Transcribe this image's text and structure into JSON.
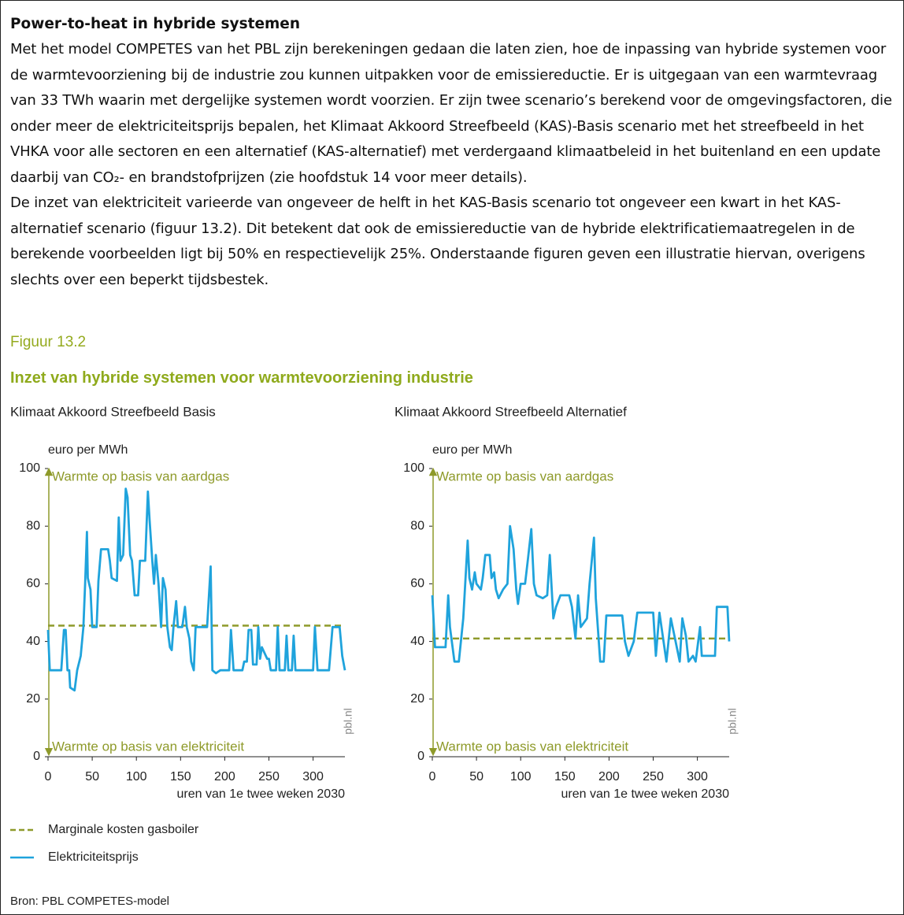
{
  "document": {
    "title": "Power-to-heat in hybride systemen",
    "paragraphs": [
      "Met het model COMPETES van het PBL zijn berekeningen gedaan die laten zien, hoe de inpassing van hybride systemen voor de warmtevoorziening bij de industrie zou kunnen uitpakken voor de emissiereductie. Er is uitgegaan van een warmtevraag van 33 TWh waarin met dergelijke systemen wordt voorzien. Er zijn twee scenario’s berekend voor de omgevingsfactoren, die onder meer de elektriciteitsprijs bepalen, het Klimaat Akkoord Streefbeeld (KAS)-Basis scenario met het streefbeeld in het VHKA voor alle sectoren en een alternatief (KAS-alternatief) met verdergaand klimaatbeleid in het buitenland en een update daarbij van CO₂- en brandstofprijzen (zie hoofdstuk 14 voor meer details).",
      "De inzet van elektriciteit varieerde van ongeveer de helft in het KAS-Basis scenario tot ongeveer een kwart in het KAS-alternatief scenario (figuur 13.2). Dit betekent dat ook de emissiereductie van de hybride elektrificatiemaatregelen in de berekende voorbeelden ligt bij 50% en respectievelijk 25%. Onderstaande figuren geven een illustratie hiervan, overigens slechts over een beperkt tijdsbestek."
    ],
    "figure_label": "Figuur 13.2",
    "figure_title": "Inzet van hybride systemen voor warmtevoorziening industrie",
    "source": "Bron: PBL COMPETES-model"
  },
  "chart_data": [
    {
      "type": "line",
      "subtitle": "Klimaat Akkoord Streefbeeld Basis",
      "ylabel": "euro per MWh",
      "xlabel": "uren van 1e twee weken 2030",
      "annotations": [
        "Warmte op basis van aardgas",
        "Warmte op basis van elektriciteit"
      ],
      "credit": "pbl.nl",
      "xlim": [
        0,
        336
      ],
      "ylim": [
        0,
        100
      ],
      "xticks": [
        0,
        50,
        100,
        150,
        200,
        250,
        300
      ],
      "yticks": [
        0,
        20,
        40,
        60,
        80,
        100
      ],
      "series": [
        {
          "name": "Marginale kosten gasboiler",
          "color": "#8e9a2a",
          "dash": true,
          "x": [
            0,
            336
          ],
          "values": [
            45.5,
            45.5
          ]
        },
        {
          "name": "Elektriciteitsprijs",
          "color": "#1fa3dc",
          "dash": false,
          "x": [
            0,
            2,
            15,
            18,
            20,
            22,
            24,
            25,
            30,
            33,
            37,
            40,
            42,
            44,
            45,
            48,
            50,
            55,
            57,
            60,
            68,
            70,
            72,
            78,
            80,
            82,
            85,
            88,
            90,
            93,
            95,
            98,
            102,
            104,
            110,
            113,
            115,
            118,
            120,
            122,
            125,
            128,
            130,
            133,
            135,
            138,
            140,
            142,
            145,
            147,
            152,
            155,
            157,
            160,
            162,
            165,
            167,
            180,
            184,
            186,
            190,
            195,
            205,
            207,
            210,
            220,
            222,
            225,
            227,
            230,
            232,
            236,
            238,
            240,
            242,
            248,
            250,
            252,
            258,
            260,
            262,
            268,
            270,
            272,
            276,
            278,
            280,
            300,
            302,
            305,
            318,
            322,
            330,
            333,
            336
          ],
          "values": [
            44,
            30,
            30,
            44,
            44,
            30,
            30,
            24,
            23,
            30,
            35,
            45,
            60,
            78,
            62,
            58,
            45,
            45,
            61,
            72,
            72,
            68,
            62,
            61,
            83,
            68,
            70,
            93,
            90,
            70,
            68,
            56,
            56,
            68,
            68,
            92,
            82,
            68,
            60,
            70,
            60,
            45,
            62,
            58,
            45,
            38,
            37,
            45,
            54,
            45,
            45,
            52,
            45,
            41,
            33,
            30,
            45,
            45,
            66,
            30,
            29,
            30,
            30,
            44,
            30,
            30,
            33,
            33,
            44,
            44,
            32,
            32,
            45,
            34,
            38,
            34,
            34,
            30,
            30,
            45,
            30,
            30,
            42,
            30,
            30,
            42,
            30,
            30,
            45,
            30,
            30,
            45,
            45,
            35,
            30
          ]
        }
      ]
    },
    {
      "type": "line",
      "subtitle": "Klimaat Akkoord Streefbeeld Alternatief",
      "ylabel": "euro per MWh",
      "xlabel": "uren van 1e twee weken 2030",
      "annotations": [
        "Warmte op basis van aardgas",
        "Warmte op basis van elektriciteit"
      ],
      "credit": "pbl.nl",
      "xlim": [
        0,
        336
      ],
      "ylim": [
        0,
        100
      ],
      "xticks": [
        0,
        50,
        100,
        150,
        200,
        250,
        300
      ],
      "yticks": [
        0,
        20,
        40,
        60,
        80,
        100
      ],
      "series": [
        {
          "name": "Marginale kosten gasboiler",
          "color": "#8e9a2a",
          "dash": true,
          "x": [
            0,
            336
          ],
          "values": [
            41,
            41
          ]
        },
        {
          "name": "Elektriciteitsprijs",
          "color": "#1fa3dc",
          "dash": false,
          "x": [
            0,
            3,
            15,
            18,
            20,
            25,
            30,
            35,
            40,
            42,
            45,
            48,
            50,
            55,
            57,
            60,
            65,
            67,
            70,
            72,
            75,
            80,
            85,
            88,
            92,
            95,
            97,
            100,
            105,
            108,
            112,
            115,
            118,
            125,
            130,
            133,
            137,
            140,
            145,
            155,
            158,
            162,
            165,
            168,
            175,
            178,
            183,
            185,
            190,
            194,
            197,
            215,
            218,
            222,
            228,
            232,
            250,
            253,
            257,
            265,
            270,
            280,
            283,
            287,
            290,
            295,
            298,
            303,
            305,
            320,
            322,
            334,
            336
          ],
          "values": [
            56,
            38,
            38,
            56,
            45,
            33,
            33,
            48,
            75,
            62,
            58,
            64,
            60,
            58,
            62,
            70,
            70,
            62,
            64,
            58,
            55,
            58,
            60,
            80,
            72,
            58,
            53,
            60,
            60,
            68,
            79,
            60,
            56,
            55,
            56,
            70,
            48,
            52,
            56,
            56,
            52,
            41,
            56,
            45,
            48,
            60,
            76,
            55,
            33,
            33,
            49,
            49,
            40,
            35,
            40,
            50,
            50,
            35,
            50,
            33,
            48,
            33,
            48,
            42,
            33,
            35,
            33,
            45,
            35,
            35,
            52,
            52,
            40
          ]
        }
      ]
    }
  ]
}
